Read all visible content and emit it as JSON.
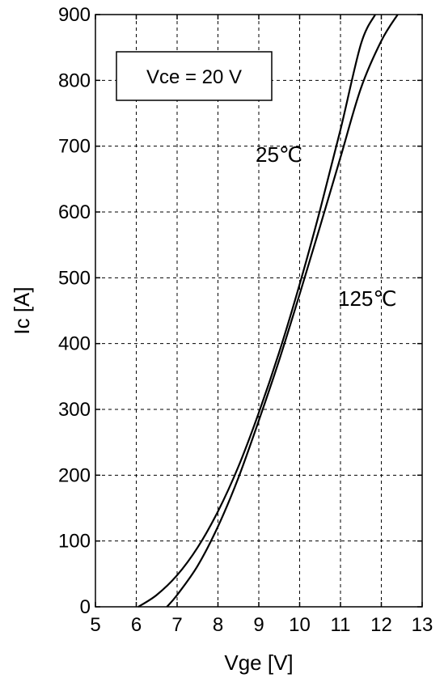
{
  "chart_data": {
    "type": "line",
    "xlabel": "Vge [V]",
    "ylabel": "Ic [A]",
    "xlim": [
      5,
      13
    ],
    "ylim": [
      0,
      900
    ],
    "x_ticks": [
      "5",
      "6",
      "7",
      "8",
      "9",
      "10",
      "11",
      "12",
      "13"
    ],
    "y_ticks": [
      "0",
      "100",
      "200",
      "300",
      "400",
      "500",
      "600",
      "700",
      "800",
      "900"
    ],
    "grid": true,
    "annotation": "Vce = 20 V",
    "series": [
      {
        "name": "25℃",
        "x": [
          6.05,
          6.5,
          7.0,
          7.5,
          8.0,
          8.5,
          9.0,
          9.5,
          10.0,
          10.5,
          11.0,
          11.5,
          11.85
        ],
        "y": [
          0,
          18,
          48,
          90,
          145,
          213,
          295,
          387,
          490,
          603,
          725,
          855,
          900
        ]
      },
      {
        "name": "125℃",
        "x": [
          6.75,
          7.0,
          7.5,
          8.0,
          8.5,
          9.0,
          9.5,
          10.0,
          10.5,
          11.0,
          11.5,
          12.0,
          12.4
        ],
        "y": [
          0,
          18,
          62,
          122,
          196,
          283,
          375,
          475,
          578,
          683,
          788,
          860,
          900
        ]
      }
    ]
  }
}
